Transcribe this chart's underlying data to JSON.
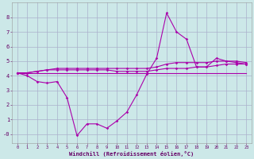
{
  "xlabel": "Windchill (Refroidissement éolien,°C)",
  "background_color": "#cce8e8",
  "grid_color": "#aab0cc",
  "line_color": "#aa00aa",
  "x_values": [
    0,
    1,
    2,
    3,
    4,
    5,
    6,
    7,
    8,
    9,
    10,
    11,
    12,
    13,
    14,
    15,
    16,
    17,
    18,
    19,
    20,
    21,
    22,
    23
  ],
  "line1": [
    4.2,
    4.0,
    3.6,
    3.5,
    3.6,
    2.5,
    -0.1,
    0.7,
    0.7,
    0.4,
    0.9,
    1.5,
    2.7,
    4.1,
    5.2,
    8.3,
    7.0,
    6.5,
    4.6,
    4.6,
    5.2,
    5.0,
    4.9,
    4.8
  ],
  "line2": [
    4.2,
    4.2,
    4.3,
    4.4,
    4.4,
    4.4,
    4.4,
    4.4,
    4.4,
    4.4,
    4.3,
    4.3,
    4.3,
    4.3,
    4.4,
    4.5,
    4.5,
    4.5,
    4.6,
    4.6,
    4.7,
    4.8,
    4.8,
    4.8
  ],
  "line3": [
    4.2,
    4.2,
    4.2,
    4.2,
    4.2,
    4.2,
    4.2,
    4.2,
    4.2,
    4.2,
    4.2,
    4.2,
    4.2,
    4.2,
    4.2,
    4.2,
    4.2,
    4.2,
    4.2,
    4.2,
    4.2,
    4.2,
    4.2,
    4.2
  ],
  "line4": [
    4.2,
    4.2,
    4.3,
    4.4,
    4.5,
    4.5,
    4.5,
    4.5,
    4.5,
    4.5,
    4.5,
    4.5,
    4.5,
    4.5,
    4.6,
    4.8,
    4.9,
    4.9,
    4.9,
    4.9,
    5.0,
    5.0,
    5.0,
    4.9
  ],
  "xlim": [
    -0.5,
    23.5
  ],
  "ylim": [
    -0.6,
    9.0
  ],
  "yticks": [
    0,
    1,
    2,
    3,
    4,
    5,
    6,
    7,
    8
  ],
  "ytick_labels": [
    "-0",
    "1",
    "2",
    "3",
    "4",
    "5",
    "6",
    "7",
    "8"
  ],
  "xticks": [
    0,
    1,
    2,
    3,
    4,
    5,
    6,
    7,
    8,
    9,
    10,
    11,
    12,
    13,
    14,
    15,
    16,
    17,
    18,
    19,
    20,
    21,
    22,
    23
  ]
}
